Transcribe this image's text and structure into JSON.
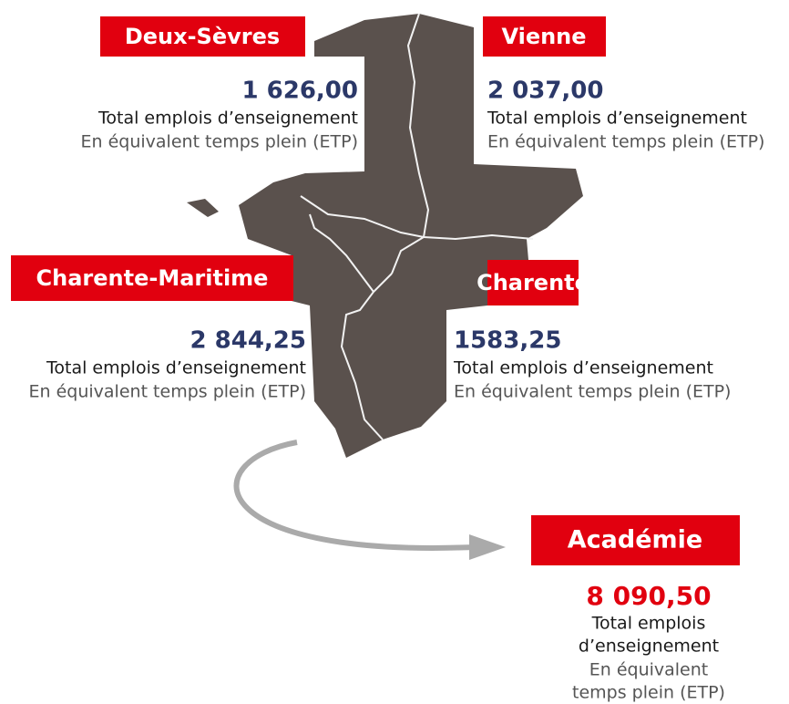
{
  "regions": [
    {
      "name": "Deux-Sèvres",
      "value": "1 626,00",
      "line1": "Total emplois d’enseignement",
      "line2": "En équivalent temps plein (ETP)"
    },
    {
      "name": "Vienne",
      "value": "2 037,00",
      "line1": "Total emplois d’enseignement",
      "line2": "En équivalent temps plein (ETP)"
    },
    {
      "name": "Charente-Maritime",
      "value": "2 844,25",
      "line1": "Total emplois d’enseignement",
      "line2": "En équivalent temps plein (ETP)"
    },
    {
      "name": "Charente",
      "value": "1583,25",
      "line1": "Total emplois d’enseignement",
      "line2": "En équivalent temps plein (ETP)"
    }
  ],
  "academy": {
    "name": "Académie",
    "value": "8 090,50",
    "lines": [
      "Total emplois",
      "d’enseignement",
      "En équivalent",
      "temps plein (ETP)"
    ]
  }
}
